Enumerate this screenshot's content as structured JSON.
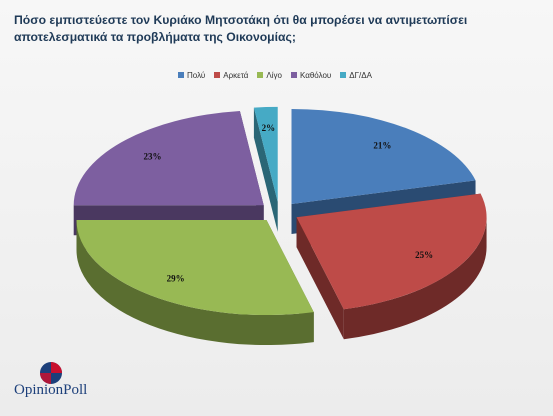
{
  "title": "Πόσο εμπιστεύεστε τον Κυριάκο Μητσοτάκη ότι θα μπορέσει να αντιμετωπίσει αποτελεσματικά τα προβλήματα της Οικονομίας;",
  "logo": {
    "text": "OpinionPoll",
    "icon": "opinionpoll-logo-icon"
  },
  "chart_data": {
    "type": "pie",
    "style": "3d-exploded",
    "legend_position": "top",
    "categories": [
      "Πολύ",
      "Αρκετά",
      "Λίγο",
      "Καθόλου",
      "ΔΓ/ΔΑ"
    ],
    "values": [
      21,
      25,
      29,
      23,
      2
    ],
    "labels": [
      "21%",
      "25%",
      "29%",
      "23%",
      "2%"
    ],
    "colors": [
      "#4a7ebb",
      "#be4b48",
      "#98b954",
      "#7d5fa0",
      "#46aac5"
    ],
    "side_colors": [
      "#2a4b72",
      "#6e2a28",
      "#5a6e30",
      "#4a3860",
      "#2a6676"
    ]
  }
}
